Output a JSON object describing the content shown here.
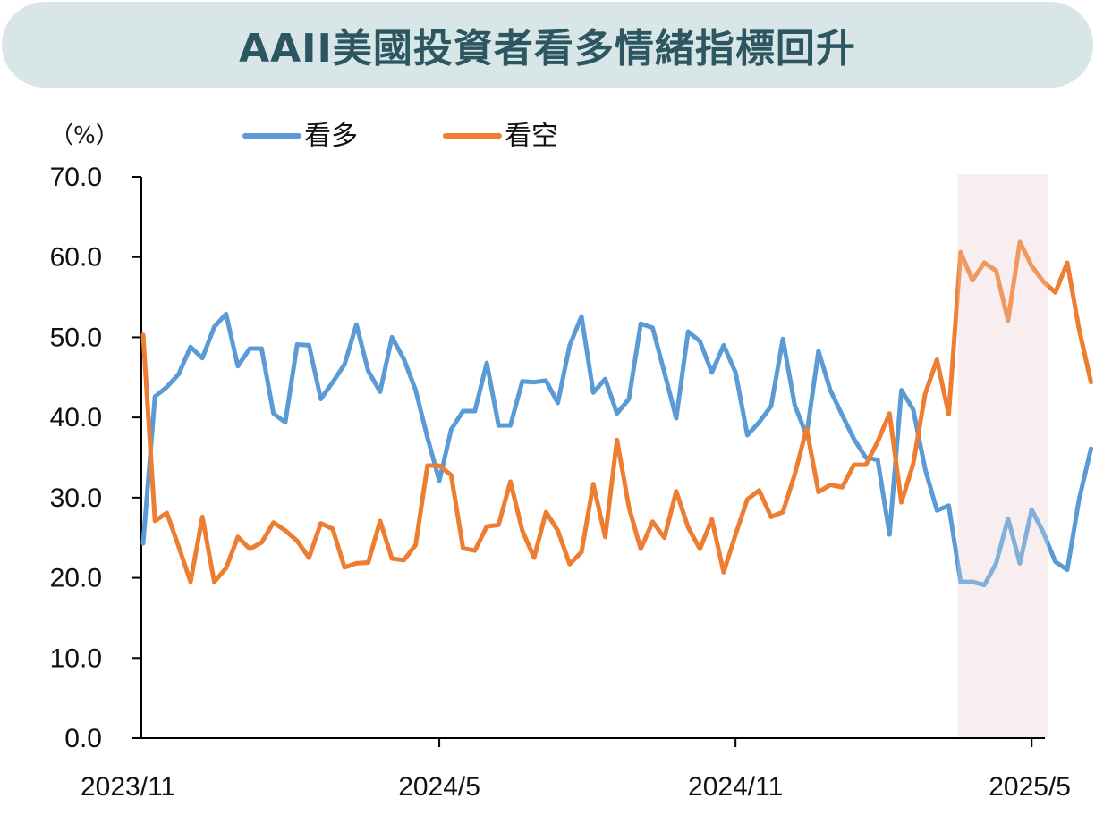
{
  "title": "AAII美國投資者看多情緒指標回升",
  "chart_data": {
    "type": "line",
    "unit": "（%）",
    "ylim": [
      0,
      70
    ],
    "yticks": [
      "0.0",
      "10.0",
      "20.0",
      "30.0",
      "40.0",
      "50.0",
      "60.0",
      "70.0"
    ],
    "xticks": [
      {
        "label": "2023/11",
        "index": 0
      },
      {
        "label": "2024/5",
        "index": 25
      },
      {
        "label": "2024/11",
        "index": 50
      },
      {
        "label": "2025/5",
        "index": 75
      }
    ],
    "legend_position": "top",
    "highlight_from_index": 68,
    "series": [
      {
        "name": "看多",
        "color": "#5b9bd5",
        "values": [
          24.3,
          42.6,
          43.8,
          45.4,
          48.8,
          47.4,
          51.3,
          52.9,
          46.4,
          48.6,
          48.6,
          40.5,
          39.4,
          49.1,
          49.0,
          42.3,
          44.4,
          46.6,
          51.6,
          45.8,
          43.2,
          50.0,
          47.3,
          43.4,
          37.5,
          32.1,
          38.5,
          40.8,
          40.8,
          46.8,
          39.0,
          39.0,
          44.5,
          44.4,
          44.6,
          41.8,
          49.0,
          52.6,
          43.1,
          44.8,
          40.5,
          42.3,
          51.7,
          51.2,
          45.6,
          39.9,
          50.7,
          49.5,
          45.6,
          49.0,
          45.6,
          37.8,
          39.4,
          41.4,
          49.8,
          41.5,
          37.8,
          48.3,
          43.4,
          40.3,
          37.3,
          35.0,
          34.7,
          25.4,
          43.4,
          41.0,
          33.6,
          28.4,
          29.0,
          19.5,
          19.5,
          19.1,
          21.8,
          27.4,
          21.8,
          28.5,
          25.6,
          22.0,
          21.0,
          29.8,
          36.1
        ]
      },
      {
        "name": "看空",
        "color": "#ed7d31",
        "values": [
          50.3,
          27.1,
          28.1,
          23.9,
          19.5,
          27.6,
          19.5,
          21.2,
          25.1,
          23.6,
          24.4,
          26.9,
          25.9,
          24.6,
          22.5,
          26.8,
          26.1,
          21.3,
          21.8,
          21.9,
          27.1,
          22.4,
          22.2,
          24.1,
          34.0,
          34.0,
          32.8,
          23.7,
          23.4,
          26.4,
          26.6,
          32.0,
          25.9,
          22.5,
          28.2,
          25.9,
          21.7,
          23.2,
          31.7,
          25.1,
          37.2,
          28.8,
          23.6,
          27.0,
          25.0,
          30.8,
          26.3,
          23.6,
          27.3,
          20.7,
          25.4,
          29.8,
          30.9,
          27.6,
          28.2,
          32.9,
          38.6,
          30.7,
          31.6,
          31.3,
          34.1,
          34.1,
          37.0,
          40.5,
          29.4,
          34.2,
          42.9,
          47.2,
          40.4,
          60.6,
          57.1,
          59.3,
          58.3,
          52.1,
          61.9,
          58.9,
          56.9,
          55.6,
          59.3,
          51.0,
          44.4
        ]
      }
    ]
  }
}
